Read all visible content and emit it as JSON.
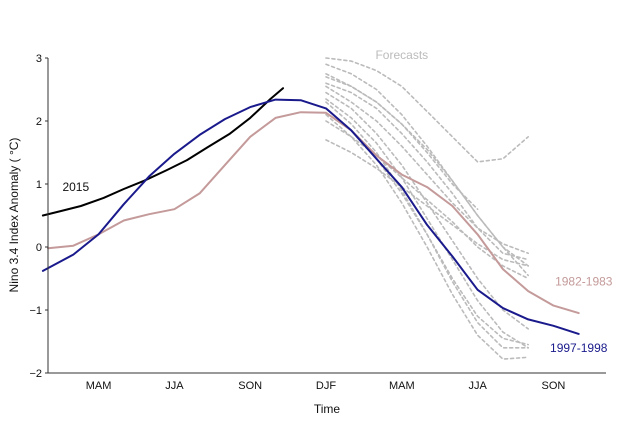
{
  "chart_data": {
    "type": "line",
    "title": "",
    "xlabel": "Time",
    "ylabel": "Nino 3.4 Index Anomaly ( °C)",
    "ylim": [
      -2,
      3
    ],
    "xlim": [
      0,
      22
    ],
    "yticks": [
      -2,
      -1,
      0,
      1,
      2,
      3
    ],
    "xticks": [
      {
        "x": 2,
        "label": "MAM"
      },
      {
        "x": 5,
        "label": "JJA"
      },
      {
        "x": 8,
        "label": "SON"
      },
      {
        "x": 11,
        "label": "DJF"
      },
      {
        "x": 14,
        "label": "MAM"
      },
      {
        "x": 17,
        "label": "JJA"
      },
      {
        "x": 20,
        "label": "SON"
      }
    ],
    "grid": false,
    "annotations": [
      {
        "text": "Forecasts",
        "x": 14,
        "y": 3.05,
        "color": "#bbbbbb"
      },
      {
        "text": "2015",
        "x": 1.1,
        "y": 0.95,
        "color": "#111111"
      },
      {
        "text": "1982-1983",
        "x": 21.2,
        "y": -0.55,
        "color": "#c49a9a"
      },
      {
        "text": "1997-1998",
        "x": 21.0,
        "y": -1.6,
        "color": "#1a1a8c"
      }
    ],
    "series": [
      {
        "name": "2015",
        "color": "#000000",
        "x": [
          -0.2,
          0.5,
          1.3,
          2.2,
          3.0,
          3.8,
          4.7,
          5.5,
          6.3,
          7.2,
          8.0,
          8.8,
          9.3
        ],
        "y": [
          0.5,
          0.57,
          0.65,
          0.78,
          0.92,
          1.05,
          1.22,
          1.38,
          1.58,
          1.8,
          2.05,
          2.35,
          2.52
        ]
      },
      {
        "name": "1982-1983",
        "color": "#c49a9a",
        "x": [
          0,
          1,
          2,
          3,
          4,
          5,
          6,
          7,
          8,
          9,
          10,
          11,
          12,
          13,
          14,
          15,
          16,
          17,
          18,
          19,
          20,
          21
        ],
        "y": [
          -0.02,
          0.02,
          0.2,
          0.42,
          0.52,
          0.6,
          0.85,
          1.3,
          1.75,
          2.05,
          2.14,
          2.13,
          1.85,
          1.45,
          1.15,
          0.95,
          0.65,
          0.2,
          -0.35,
          -0.7,
          -0.93,
          -1.05
        ]
      },
      {
        "name": "1997-1998",
        "color": "#1a1a8c",
        "x": [
          -0.2,
          1,
          2,
          3,
          4,
          5,
          6,
          7,
          8,
          9,
          10,
          11,
          12,
          13,
          14,
          15,
          16,
          17,
          18,
          19,
          20,
          21
        ],
        "y": [
          -0.38,
          -0.12,
          0.2,
          0.68,
          1.12,
          1.48,
          1.78,
          2.03,
          2.22,
          2.34,
          2.33,
          2.2,
          1.85,
          1.4,
          0.95,
          0.35,
          -0.15,
          -0.68,
          -0.97,
          -1.15,
          -1.25,
          -1.38
        ]
      },
      {
        "name": "forecast-1",
        "dashed": true,
        "color": "#bbbbbb",
        "x": [
          11,
          12,
          13,
          14,
          15,
          16,
          17,
          18,
          19
        ],
        "y": [
          3.0,
          2.95,
          2.8,
          2.55,
          2.15,
          1.75,
          1.35,
          1.4,
          1.75
        ]
      },
      {
        "name": "forecast-2",
        "dashed": true,
        "color": "#bbbbbb",
        "x": [
          11,
          12,
          13,
          14,
          15,
          16,
          17,
          18,
          19
        ],
        "y": [
          2.9,
          2.75,
          2.5,
          2.1,
          1.6,
          1.05,
          0.5,
          0.0,
          -0.3
        ]
      },
      {
        "name": "forecast-3",
        "dashed": true,
        "color": "#bbbbbb",
        "x": [
          11,
          12,
          13,
          14,
          15,
          16,
          17,
          18,
          19
        ],
        "y": [
          2.75,
          2.55,
          2.3,
          1.95,
          1.55,
          1.05,
          0.5,
          0.0,
          -0.45
        ]
      },
      {
        "name": "forecast-4",
        "dashed": true,
        "color": "#bbbbbb",
        "x": [
          11,
          12,
          13,
          14,
          15,
          16,
          17
        ],
        "y": [
          2.7,
          2.55,
          2.3,
          1.95,
          1.5,
          1.0,
          0.6
        ]
      },
      {
        "name": "forecast-5",
        "dashed": true,
        "color": "#bbbbbb",
        "x": [
          11,
          12,
          13,
          14,
          15,
          16,
          17,
          18,
          19
        ],
        "y": [
          2.6,
          2.45,
          2.2,
          1.8,
          1.35,
          0.85,
          0.3,
          -0.1,
          -0.2
        ]
      },
      {
        "name": "forecast-6",
        "dashed": true,
        "color": "#bbbbbb",
        "x": [
          11,
          12,
          13,
          14,
          15,
          16,
          17,
          18,
          19
        ],
        "y": [
          2.55,
          2.3,
          2.0,
          1.6,
          1.15,
          0.7,
          0.3,
          0.05,
          -0.1
        ]
      },
      {
        "name": "forecast-7",
        "dashed": true,
        "color": "#bbbbbb",
        "x": [
          11,
          12,
          13,
          14,
          15,
          16,
          17,
          18,
          19
        ],
        "y": [
          2.45,
          2.2,
          1.8,
          1.3,
          0.7,
          0.1,
          -0.5,
          -1.0,
          -1.3
        ]
      },
      {
        "name": "forecast-8",
        "dashed": true,
        "color": "#bbbbbb",
        "x": [
          11,
          12,
          13,
          14,
          15,
          16,
          17,
          18,
          19
        ],
        "y": [
          2.35,
          2.05,
          1.65,
          1.1,
          0.45,
          -0.2,
          -0.85,
          -1.35,
          -1.6
        ]
      },
      {
        "name": "forecast-9",
        "dashed": true,
        "color": "#bbbbbb",
        "x": [
          11,
          12,
          13,
          14,
          15,
          16,
          17,
          18,
          19
        ],
        "y": [
          2.3,
          1.95,
          1.5,
          0.9,
          0.2,
          -0.55,
          -1.2,
          -1.6,
          -1.6
        ]
      },
      {
        "name": "forecast-10",
        "dashed": true,
        "color": "#bbbbbb",
        "x": [
          11,
          12,
          13,
          14,
          15,
          16,
          17,
          18,
          19
        ],
        "y": [
          2.2,
          1.85,
          1.4,
          0.85,
          0.2,
          -0.5,
          -1.1,
          -1.45,
          -1.55
        ]
      },
      {
        "name": "forecast-11",
        "dashed": true,
        "color": "#bbbbbb",
        "x": [
          11,
          12,
          13,
          14,
          15,
          16,
          17,
          18,
          19
        ],
        "y": [
          2.1,
          1.75,
          1.3,
          0.7,
          0.0,
          -0.75,
          -1.4,
          -1.78,
          -1.75
        ]
      },
      {
        "name": "forecast-12",
        "dashed": true,
        "color": "#bbbbbb",
        "x": [
          11,
          12,
          13,
          14,
          15,
          16,
          17,
          18,
          19
        ],
        "y": [
          2.0,
          1.75,
          1.45,
          1.1,
          0.75,
          0.4,
          0.0,
          -0.3,
          -0.5
        ]
      },
      {
        "name": "forecast-13",
        "dashed": true,
        "color": "#bbbbbb",
        "x": [
          11,
          12,
          13,
          14,
          15,
          16,
          17,
          18,
          19
        ],
        "y": [
          1.7,
          1.5,
          1.25,
          0.95,
          0.65,
          0.35,
          0.05,
          -0.2,
          -0.3
        ]
      }
    ]
  }
}
